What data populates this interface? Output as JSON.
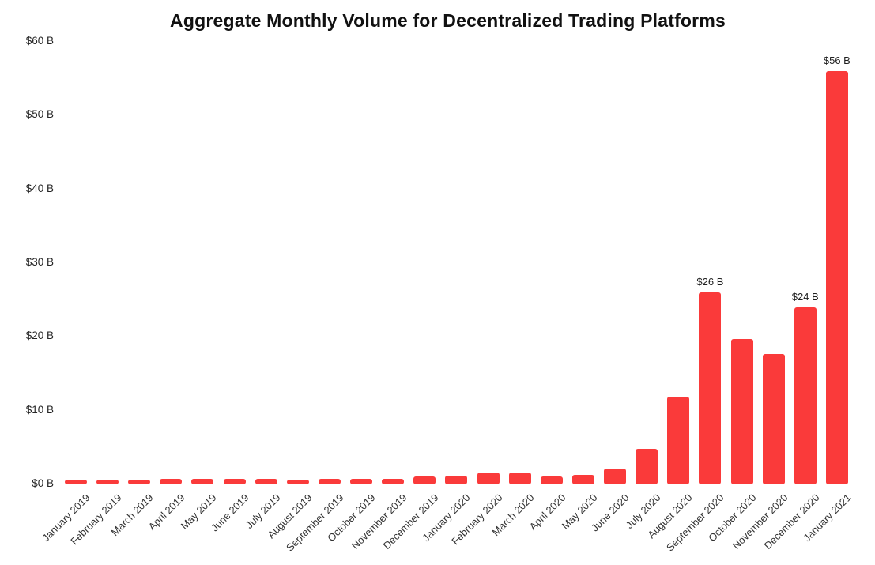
{
  "chart_data": {
    "type": "bar",
    "title": "Aggregate Monthly Volume for Decentralized Trading Platforms",
    "categories": [
      "January 2019",
      "February 2019",
      "March 2019",
      "April 2019",
      "May 2019",
      "June 2019",
      "July 2019",
      "August 2019",
      "September 2019",
      "October 2019",
      "November 2019",
      "December 2019",
      "January 2020",
      "February 2020",
      "March 2020",
      "April 2020",
      "May 2020",
      "June 2020",
      "July 2020",
      "August 2020",
      "September 2020",
      "October 2020",
      "November 2020",
      "December 2020",
      "January 2021"
    ],
    "values": [
      0.6,
      0.6,
      0.6,
      0.7,
      0.75,
      0.75,
      0.8,
      0.6,
      0.75,
      0.75,
      0.7,
      1.1,
      1.2,
      1.6,
      1.6,
      1.1,
      1.3,
      2.1,
      4.8,
      11.9,
      26,
      19.7,
      17.7,
      24,
      56
    ],
    "unit": "$ Billions",
    "xlabel": "",
    "ylabel": "",
    "ylim": [
      0,
      60
    ],
    "grid": false,
    "legend": "none",
    "y_ticks": [
      "$60 B",
      "$50 B",
      "$40 B",
      "$30 B",
      "$20 B",
      "$10 B",
      "$0 B"
    ],
    "y_tick_values": [
      60,
      50,
      40,
      30,
      20,
      10,
      0
    ],
    "bar_labels": [
      {
        "category": "September 2020",
        "text": "$26 B"
      },
      {
        "category": "December 2020",
        "text": "$24 B"
      },
      {
        "category": "January 2021",
        "text": "$56 B"
      }
    ],
    "bar_color": "#FA3A3A",
    "title_color": "#111111",
    "axis_label_color": "#333333"
  }
}
